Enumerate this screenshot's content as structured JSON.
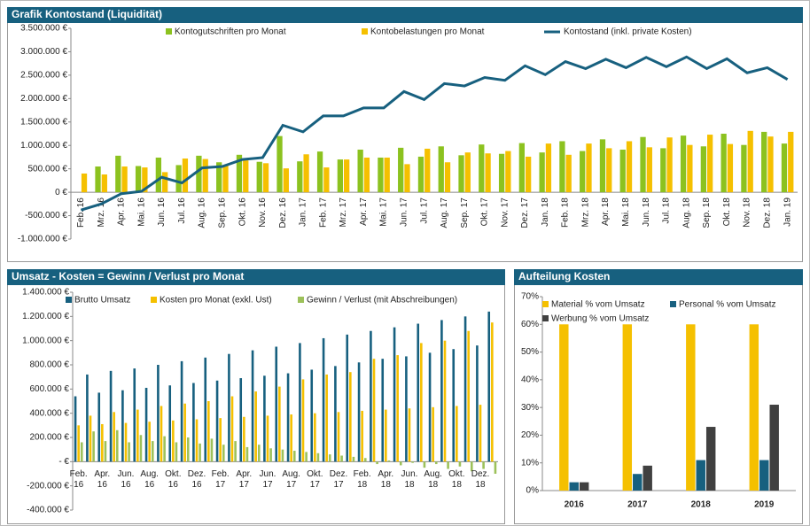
{
  "chart_data": [
    {
      "type": "bar",
      "title": "Grafik Kontostand (Liquidität)",
      "categories": [
        "Feb. 16",
        "Mrz. 16",
        "Apr. 16",
        "Mai. 16",
        "Jun. 16",
        "Jul. 16",
        "Aug. 16",
        "Sep. 16",
        "Okt. 16",
        "Nov. 16",
        "Dez. 16",
        "Jan. 17",
        "Feb. 17",
        "Mrz. 17",
        "Apr. 17",
        "Mai. 17",
        "Jun. 17",
        "Jul. 17",
        "Aug. 17",
        "Sep. 17",
        "Okt. 17",
        "Nov. 17",
        "Dez. 17",
        "Jan. 18",
        "Feb. 18",
        "Mrz. 18",
        "Apr. 18",
        "Mai. 18",
        "Jun. 18",
        "Jul. 18",
        "Aug. 18",
        "Sep. 18",
        "Okt. 18",
        "Nov. 18",
        "Dez. 18",
        "Jan. 19"
      ],
      "series": [
        {
          "name": "Kontogutschriften pro Monat",
          "color": "#8cc21f",
          "values": [
            0,
            550000,
            780000,
            560000,
            740000,
            580000,
            780000,
            640000,
            800000,
            650000,
            1200000,
            660000,
            870000,
            700000,
            910000,
            740000,
            950000,
            760000,
            980000,
            790000,
            1020000,
            820000,
            1050000,
            850000,
            1090000,
            880000,
            1130000,
            910000,
            1180000,
            940000,
            1210000,
            980000,
            1250000,
            1010000,
            1290000,
            1040000
          ]
        },
        {
          "name": "Kontobelastungen pro Monat",
          "color": "#f5c000",
          "values": [
            400000,
            380000,
            550000,
            530000,
            430000,
            720000,
            710000,
            580000,
            680000,
            620000,
            510000,
            810000,
            530000,
            700000,
            740000,
            740000,
            600000,
            930000,
            640000,
            850000,
            830000,
            880000,
            760000,
            1040000,
            800000,
            1040000,
            940000,
            1090000,
            960000,
            1170000,
            1010000,
            1230000,
            1030000,
            1310000,
            1190000,
            1290000
          ]
        },
        {
          "name": "Kontostand (inkl. private Kosten)",
          "color": "#17607f",
          "type": "line",
          "values": [
            -380000,
            -250000,
            -30000,
            20000,
            320000,
            200000,
            520000,
            550000,
            700000,
            740000,
            1430000,
            1290000,
            1630000,
            1630000,
            1800000,
            1800000,
            2150000,
            1980000,
            2320000,
            2270000,
            2450000,
            2390000,
            2700000,
            2510000,
            2790000,
            2640000,
            2840000,
            2660000,
            2880000,
            2680000,
            2890000,
            2640000,
            2850000,
            2550000,
            2660000,
            2410000
          ]
        }
      ],
      "ylim": [
        -1000000,
        3500000
      ],
      "yticks": [
        {
          "value": -1000000,
          "label": "-1.000.000 €"
        },
        {
          "value": -500000,
          "label": "-500.000 €"
        },
        {
          "value": 0,
          "label": "0 €"
        },
        {
          "value": 500000,
          "label": "500.000 €"
        },
        {
          "value": 1000000,
          "label": "1.000.000 €"
        },
        {
          "value": 1500000,
          "label": "1.500.000 €"
        },
        {
          "value": 2000000,
          "label": "2.000.000 €"
        },
        {
          "value": 2500000,
          "label": "2.500.000 €"
        },
        {
          "value": 3000000,
          "label": "3.000.000 €"
        },
        {
          "value": 3500000,
          "label": "3.500.000 €"
        }
      ]
    },
    {
      "type": "bar",
      "title": "Umsatz - Kosten = Gewinn / Verlust pro Monat",
      "categories": [
        "Feb. 16",
        null,
        "Apr. 16",
        null,
        "Jun. 16",
        null,
        "Aug. 16",
        null,
        "Okt. 16",
        null,
        "Dez. 16",
        null,
        "Feb. 17",
        null,
        "Apr. 17",
        null,
        "Jun. 17",
        null,
        "Aug. 17",
        null,
        "Okt. 17",
        null,
        "Dez. 17",
        null,
        "Feb. 18",
        null,
        "Apr. 18",
        null,
        "Jun. 18",
        null,
        "Aug. 18",
        null,
        "Okt. 18",
        null,
        "Dez. 18",
        null
      ],
      "series": [
        {
          "name": "Brutto Umsatz",
          "color": "#17607f",
          "values": [
            540000,
            720000,
            570000,
            750000,
            590000,
            770000,
            610000,
            800000,
            630000,
            830000,
            650000,
            860000,
            670000,
            890000,
            690000,
            920000,
            710000,
            950000,
            730000,
            980000,
            760000,
            1020000,
            790000,
            1050000,
            820000,
            1080000,
            850000,
            1110000,
            870000,
            1140000,
            900000,
            1170000,
            930000,
            1200000,
            960000,
            1240000
          ]
        },
        {
          "name": "Kosten pro Monat (exkl. Ust)",
          "color": "#f5c000",
          "values": [
            300000,
            380000,
            310000,
            410000,
            320000,
            430000,
            330000,
            460000,
            340000,
            480000,
            350000,
            500000,
            360000,
            540000,
            370000,
            580000,
            380000,
            620000,
            390000,
            680000,
            400000,
            720000,
            410000,
            740000,
            420000,
            850000,
            430000,
            880000,
            440000,
            980000,
            450000,
            1000000,
            460000,
            1080000,
            470000,
            1150000
          ]
        },
        {
          "name": "Gewinn / Verlust (mit Abschreibungen)",
          "color": "#9dc15a",
          "values": [
            160000,
            250000,
            170000,
            260000,
            160000,
            220000,
            170000,
            210000,
            160000,
            200000,
            150000,
            190000,
            140000,
            170000,
            120000,
            140000,
            110000,
            100000,
            90000,
            80000,
            70000,
            60000,
            50000,
            40000,
            30000,
            -20000,
            10000,
            -30000,
            -10000,
            -50000,
            -20000,
            -60000,
            -40000,
            -80000,
            -60000,
            -100000
          ]
        }
      ],
      "ylim": [
        -400000,
        1400000
      ],
      "yticks": [
        {
          "value": -400000,
          "label": "-400.000 €"
        },
        {
          "value": -200000,
          "label": "-200.000 €"
        },
        {
          "value": 0,
          "label": "-   €"
        },
        {
          "value": 200000,
          "label": "200.000 €"
        },
        {
          "value": 400000,
          "label": "400.000 €"
        },
        {
          "value": 600000,
          "label": "600.000 €"
        },
        {
          "value": 800000,
          "label": "800.000 €"
        },
        {
          "value": 1000000,
          "label": "1.000.000 €"
        },
        {
          "value": 1200000,
          "label": "1.200.000 €"
        },
        {
          "value": 1400000,
          "label": "1.400.000 €"
        }
      ]
    },
    {
      "type": "bar",
      "title": "Aufteilung Kosten",
      "categories": [
        "2016",
        "2017",
        "2018",
        "2019"
      ],
      "series": [
        {
          "name": "Material % vom Umsatz",
          "color": "#f5c000",
          "values": [
            60,
            60,
            60,
            60
          ]
        },
        {
          "name": "Personal % vom Umsatz",
          "color": "#17607f",
          "values": [
            3,
            6,
            11,
            11
          ]
        },
        {
          "name": "Werbung % vom Umsatz",
          "color": "#404040",
          "values": [
            3,
            9,
            23,
            31
          ]
        }
      ],
      "ylim": [
        0,
        70
      ],
      "yticks": [
        {
          "value": 0,
          "label": "0%"
        },
        {
          "value": 10,
          "label": "10%"
        },
        {
          "value": 20,
          "label": "20%"
        },
        {
          "value": 30,
          "label": "30%"
        },
        {
          "value": 40,
          "label": "40%"
        },
        {
          "value": 50,
          "label": "50%"
        },
        {
          "value": 60,
          "label": "60%"
        },
        {
          "value": 70,
          "label": "70%"
        }
      ]
    }
  ]
}
